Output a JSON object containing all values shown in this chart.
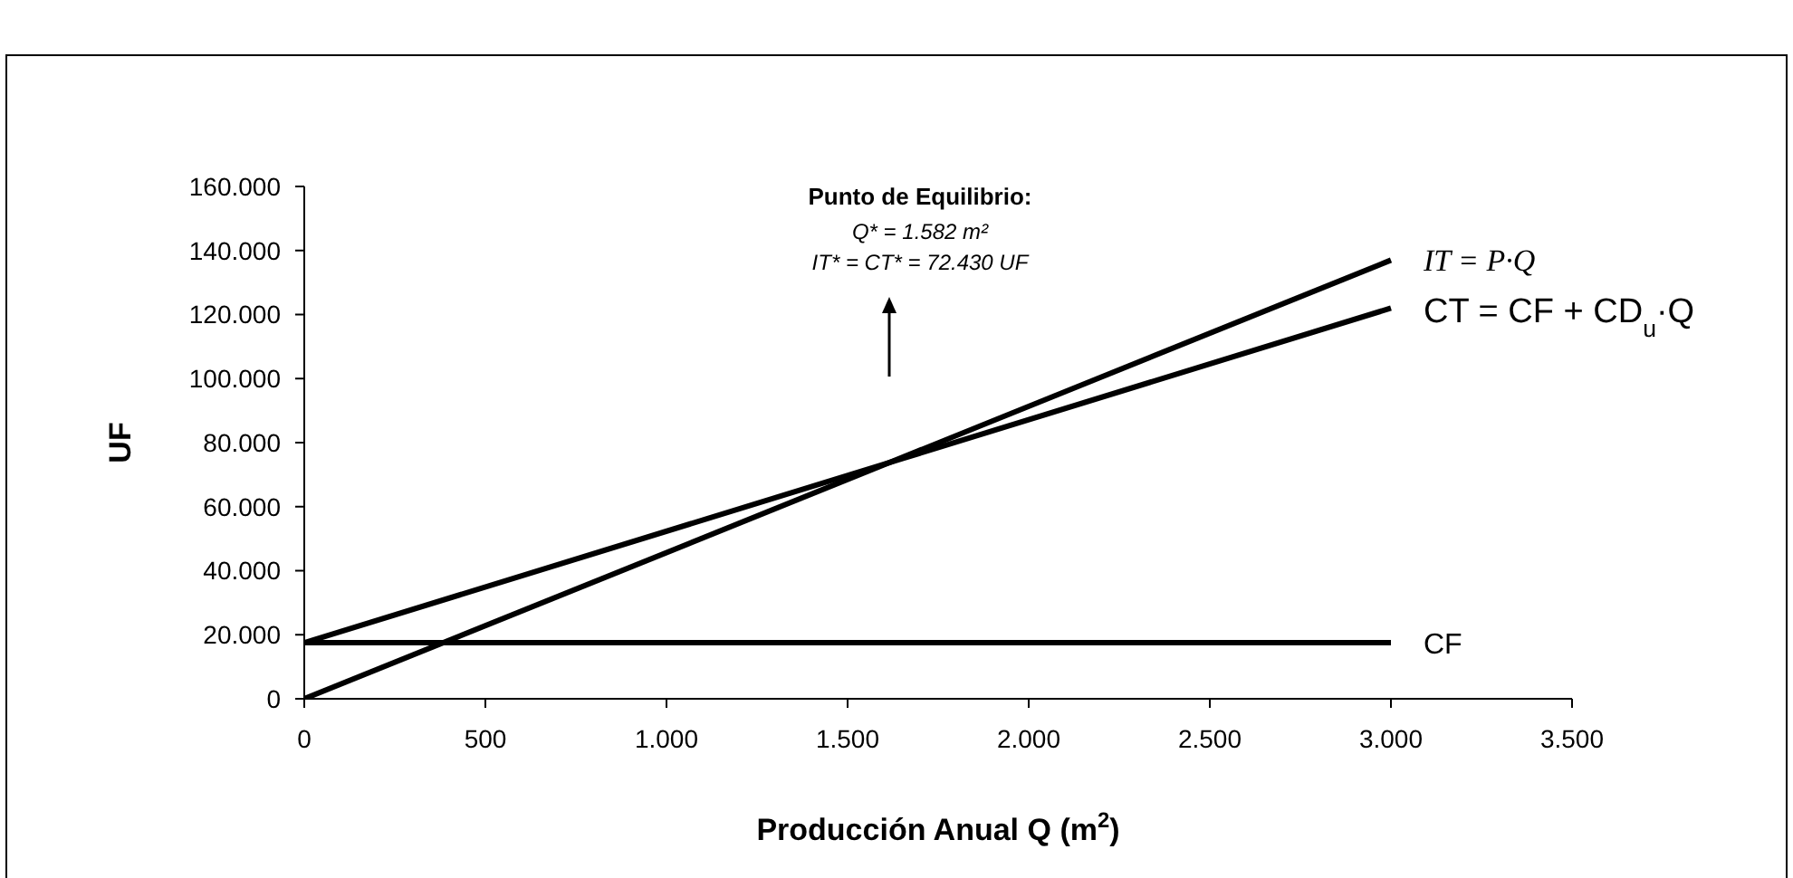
{
  "chart_data": {
    "type": "line",
    "xlabel": "Producción Anual Q (m$^{2}$)",
    "ylabel": "UF",
    "xlim": [
      0,
      3500
    ],
    "xticks": [
      0,
      500,
      {
        "value": 1000,
        "label": "1.000"
      },
      {
        "value": 1500,
        "label": "1.500"
      },
      {
        "value": 2000,
        "label": "2.000"
      },
      {
        "value": 2500,
        "label": "2.500"
      },
      {
        "value": 3000,
        "label": "3.000"
      },
      {
        "value": 3500,
        "label": "3.500"
      }
    ],
    "ylim": [
      0,
      160000
    ],
    "yticks": [
      0,
      {
        "value": 20000,
        "label": "20.000"
      },
      {
        "value": 40000,
        "label": "40.000"
      },
      {
        "value": 60000,
        "label": "60.000"
      },
      {
        "value": 80000,
        "label": "80.000"
      },
      {
        "value": 100000,
        "label": "100.000"
      },
      {
        "value": 120000,
        "label": "120.000"
      },
      {
        "value": 140000,
        "label": "140.000"
      },
      {
        "value": 160000,
        "label": "160.000"
      }
    ],
    "x": [
      0,
      3000
    ],
    "series": [
      {
        "name": "IT = P·Q",
        "color": "#000000",
        "values": [
          0,
          137000
        ]
      },
      {
        "name": "CT = CF + CD$_{u}$·Q",
        "color": "#000000",
        "values": [
          17500,
          122000
        ]
      },
      {
        "name": "CF",
        "color": "#000000",
        "values": [
          17500,
          17500
        ]
      }
    ],
    "annotations": [
      "Punto de Equilibrio:",
      "Q* = 1.582 m²",
      "IT* = CT* = 72.430 UF"
    ],
    "grid": false,
    "legend": false,
    "marker": "none",
    "line_style": "solid"
  }
}
